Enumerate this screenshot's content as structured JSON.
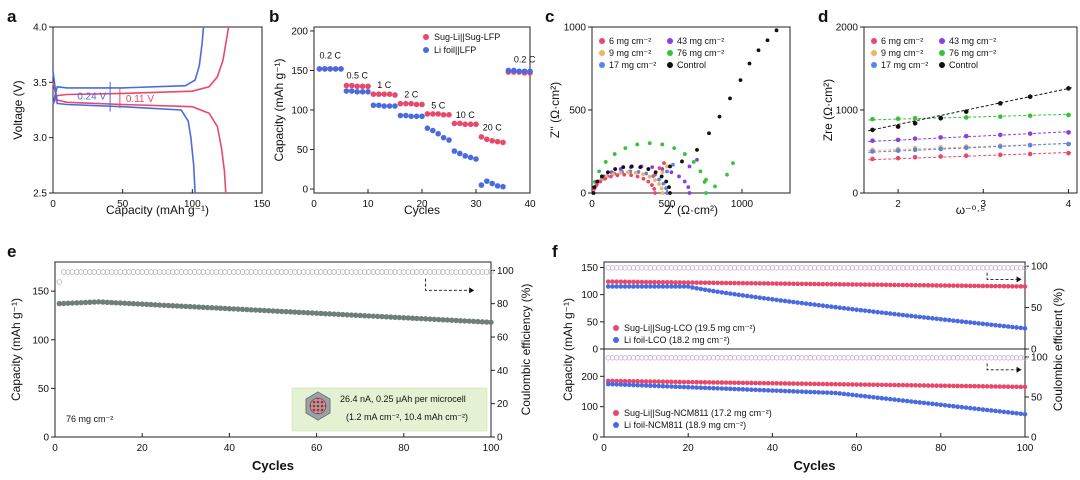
{
  "colors": {
    "red": "#e8496b",
    "blue": "#4a6be0",
    "axis": "#222222",
    "green_box": "#e6f4d6",
    "gray_dot": "#6d7f76"
  },
  "panels": [
    {
      "letter": "a",
      "xlabel": "Capacity (mAh g⁻¹)",
      "ylabel": "Voltage (V)",
      "xticks": [
        "0",
        "50",
        "100",
        "150"
      ],
      "yticks": [
        "2.5",
        "3.0",
        "3.5",
        "4.0"
      ],
      "annotations": [
        "0.24 V",
        "0.11 V"
      ]
    },
    {
      "letter": "b",
      "xlabel": "Cycles",
      "ylabel": "Capacity (mAh g⁻¹)",
      "xticks": [
        "0",
        "10",
        "20",
        "30",
        "40"
      ],
      "yticks": [
        "0",
        "50",
        "100",
        "150",
        "200"
      ],
      "legend": [
        "Sug-Li||Sug-LFP",
        "Li foil||LFP"
      ],
      "rates": [
        "0.2 C",
        "0.5 C",
        "1 C",
        "2 C",
        "5 C",
        "10 C",
        "20 C",
        "0.2 C"
      ]
    },
    {
      "letter": "c",
      "xlabel": "Z' (Ω·cm²)",
      "ylabel": "Z'' (Ω·cm²)",
      "xticks": [
        "0",
        "500",
        "1000"
      ],
      "yticks": [
        "0",
        "500",
        "1000"
      ],
      "legend": [
        "6 mg cm⁻²",
        "9 mg cm⁻²",
        "17 mg cm⁻²",
        "43 mg cm⁻²",
        "76 mg cm⁻²",
        "Control"
      ]
    },
    {
      "letter": "d",
      "xlabel": "ω⁻⁰·⁵",
      "ylabel": "Zre (Ω·cm²)",
      "xticks": [
        "2",
        "3",
        "4"
      ],
      "yticks": [
        "0",
        "1000",
        "2000"
      ],
      "legend": [
        "6 mg cm⁻²",
        "9 mg cm⁻²",
        "17 mg cm⁻²",
        "43 mg cm⁻²",
        "76 mg cm⁻²",
        "Control"
      ]
    },
    {
      "letter": "e",
      "xlabel": "Cycles",
      "ylabel": "Capacity (mAh g⁻¹)",
      "ylabel2": "Coulombic efficiency (%)",
      "xticks": [
        "0",
        "20",
        "40",
        "60",
        "80",
        "100"
      ],
      "yticks": [
        "0",
        "50",
        "100",
        "150"
      ],
      "y2ticks": [
        "0",
        "20",
        "40",
        "60",
        "80",
        "100"
      ],
      "loading": "76 mg cm⁻²",
      "box_line1": "26.4 nA, 0.25 μAh per microcell",
      "box_line2": "(1.2 mA cm⁻², 10.4 mAh cm⁻²)"
    },
    {
      "letter": "f",
      "xlabel": "Cycles",
      "ylabel": "Capacity (mAh g⁻¹)",
      "ylabel2": "Coulombic efficient (%)",
      "xticks": [
        "0",
        "20",
        "40",
        "60",
        "80",
        "100"
      ],
      "top_yticks": [
        "0",
        "50",
        "100",
        "150"
      ],
      "bottom_yticks": [
        "0",
        "100",
        "200"
      ],
      "top_y2ticks": [
        "0",
        "50",
        "100"
      ],
      "bottom_y2ticks": [
        "0",
        "50",
        "100"
      ],
      "top_legend": [
        "Sug-Li||Sug-LCO (19.5 mg cm⁻²)",
        "Li foil-LCO (18.2 mg cm⁻²)"
      ],
      "bottom_legend": [
        "Sug-Li||Sug-NCM811 (17.2 mg cm⁻²)",
        "Li foil-NCM811 (18.9 mg cm⁻²)"
      ]
    }
  ],
  "chart_data": [
    {
      "type": "line",
      "panel": "a",
      "xlabel": "Capacity (mAh g⁻¹)",
      "ylabel": "Voltage (V)",
      "xlim": [
        0,
        150
      ],
      "ylim": [
        2.5,
        4.0
      ],
      "series": [
        {
          "name": "Sug-Li||Sug-LFP",
          "charge": [
            [
              0,
              3.3
            ],
            [
              3,
              3.38
            ],
            [
              10,
              3.39
            ],
            [
              50,
              3.4
            ],
            [
              100,
              3.42
            ],
            [
              112,
              3.46
            ],
            [
              118,
              3.55
            ],
            [
              122,
              3.7
            ],
            [
              124,
              3.85
            ],
            [
              126,
              4.0
            ]
          ],
          "discharge": [
            [
              0,
              3.5
            ],
            [
              3,
              3.34
            ],
            [
              10,
              3.32
            ],
            [
              50,
              3.3
            ],
            [
              100,
              3.28
            ],
            [
              112,
              3.22
            ],
            [
              118,
              3.1
            ],
            [
              121,
              2.9
            ],
            [
              123,
              2.7
            ],
            [
              124,
              2.5
            ]
          ]
        },
        {
          "name": "Li foil||LFP",
          "charge": [
            [
              0,
              3.3
            ],
            [
              3,
              3.46
            ],
            [
              10,
              3.45
            ],
            [
              50,
              3.45
            ],
            [
              95,
              3.47
            ],
            [
              102,
              3.52
            ],
            [
              105,
              3.65
            ],
            [
              107,
              3.85
            ],
            [
              108,
              4.0
            ]
          ],
          "discharge": [
            [
              0,
              3.6
            ],
            [
              3,
              3.31
            ],
            [
              10,
              3.3
            ],
            [
              50,
              3.28
            ],
            [
              92,
              3.25
            ],
            [
              97,
              3.15
            ],
            [
              99,
              3.0
            ],
            [
              101,
              2.75
            ],
            [
              102,
              2.5
            ]
          ]
        }
      ]
    },
    {
      "type": "scatter",
      "panel": "b",
      "xlabel": "Cycles",
      "ylabel": "Capacity (mAh g⁻¹)",
      "xlim": [
        0,
        40
      ],
      "ylim": [
        -5,
        205
      ],
      "series": [
        {
          "name": "Sug-Li||Sug-LFP",
          "x": [
            1,
            2,
            3,
            4,
            5,
            6,
            7,
            8,
            9,
            10,
            11,
            12,
            13,
            14,
            15,
            16,
            17,
            18,
            19,
            20,
            21,
            22,
            23,
            24,
            25,
            26,
            27,
            28,
            29,
            30,
            31,
            32,
            33,
            34,
            35,
            36,
            37,
            38,
            39,
            40
          ],
          "y": [
            152,
            152,
            152,
            152,
            152,
            131,
            131,
            130,
            130,
            130,
            120,
            120,
            120,
            120,
            119,
            108,
            108,
            108,
            107,
            107,
            95,
            95,
            95,
            94,
            94,
            83,
            83,
            82,
            82,
            82,
            66,
            63,
            61,
            60,
            59,
            148,
            148,
            148,
            147,
            147
          ]
        },
        {
          "name": "Li foil||LFP",
          "x": [
            1,
            2,
            3,
            4,
            5,
            6,
            7,
            8,
            9,
            10,
            11,
            12,
            13,
            14,
            15,
            16,
            17,
            18,
            19,
            20,
            21,
            22,
            23,
            24,
            25,
            26,
            27,
            28,
            29,
            30,
            31,
            32,
            33,
            34,
            35,
            36,
            37,
            38,
            39,
            40
          ],
          "y": [
            152,
            152,
            152,
            152,
            152,
            124,
            124,
            123,
            123,
            123,
            106,
            106,
            105,
            105,
            105,
            93,
            93,
            92,
            92,
            92,
            77,
            74,
            70,
            65,
            62,
            48,
            45,
            42,
            40,
            38,
            5,
            10,
            7,
            4,
            3,
            150,
            150,
            149,
            149,
            149
          ]
        }
      ]
    },
    {
      "type": "scatter",
      "panel": "c",
      "xlabel": "Z' (Ω·cm²)",
      "ylabel": "Z'' (Ω·cm²)",
      "xlim": [
        0,
        1320
      ],
      "ylim": [
        0,
        1000
      ],
      "series": [
        {
          "name": "6 mg cm⁻²",
          "arc": [
            10,
            420,
            110
          ],
          "tail": [
            [
              420,
              110
            ],
            [
              450,
              150
            ],
            [
              480,
              180
            ]
          ]
        },
        {
          "name": "9 mg cm⁻²",
          "arc": [
            10,
            470,
            125
          ],
          "tail": [
            [
              470,
              125
            ],
            [
              500,
              160
            ]
          ]
        },
        {
          "name": "17 mg cm⁻²",
          "arc": [
            10,
            500,
            130
          ],
          "tail": [
            [
              500,
              130
            ],
            [
              540,
              170
            ]
          ]
        },
        {
          "name": "43 mg cm⁻²",
          "arc": [
            10,
            650,
            160
          ],
          "tail": [
            [
              650,
              160
            ],
            [
              700,
              200
            ]
          ]
        },
        {
          "name": "76 mg cm⁻²",
          "arc": [
            10,
            760,
            300
          ],
          "tail": [
            [
              760,
              80
            ],
            [
              820,
              40
            ],
            [
              900,
              110
            ],
            [
              940,
              180
            ]
          ]
        },
        {
          "name": "Control",
          "arc": [
            10,
            520,
            160
          ],
          "tail": [
            [
              520,
              160
            ],
            [
              600,
              190
            ],
            [
              700,
              260
            ],
            [
              780,
              360
            ],
            [
              850,
              460
            ],
            [
              920,
              570
            ],
            [
              990,
              680
            ],
            [
              1050,
              780
            ],
            [
              1110,
              860
            ],
            [
              1170,
              920
            ],
            [
              1230,
              980
            ]
          ]
        }
      ]
    },
    {
      "type": "scatter",
      "panel": "d",
      "xlabel": "ω⁻⁰·⁵",
      "ylabel": "Zre (Ω·cm²)",
      "xlim": [
        1.6,
        4.1
      ],
      "ylim": [
        0,
        2000
      ],
      "x": [
        1.7,
        2.0,
        2.2,
        2.5,
        2.8,
        3.2,
        3.55,
        4.0
      ],
      "series": [
        {
          "name": "6 mg cm⁻²",
          "y": [
            410,
            420,
            430,
            440,
            450,
            460,
            470,
            480
          ]
        },
        {
          "name": "9 mg cm⁻²",
          "y": [
            520,
            530,
            540,
            550,
            560,
            570,
            580,
            590
          ]
        },
        {
          "name": "17 mg cm⁻²",
          "y": [
            500,
            510,
            520,
            530,
            545,
            560,
            575,
            590
          ]
        },
        {
          "name": "43 mg cm⁻²",
          "y": [
            630,
            640,
            655,
            670,
            685,
            700,
            715,
            730
          ]
        },
        {
          "name": "76 mg cm⁻²",
          "y": [
            890,
            895,
            900,
            905,
            910,
            920,
            930,
            940
          ]
        },
        {
          "name": "Control",
          "y": [
            760,
            800,
            840,
            900,
            980,
            1080,
            1160,
            1260
          ]
        }
      ]
    },
    {
      "type": "scatter",
      "panel": "e",
      "xlabel": "Cycles",
      "ylabel": "Capacity (mAh g⁻¹)",
      "xlim": [
        0,
        100
      ],
      "ylim": [
        0,
        180
      ],
      "y2lim": [
        0,
        105
      ],
      "series": [
        {
          "name": "Capacity",
          "start": 137,
          "peak": 139,
          "end": 118
        },
        {
          "name": "Coulombic efficiency",
          "first": 93,
          "value": 99
        }
      ]
    },
    {
      "type": "scatter",
      "panel": "f-top",
      "xlabel": "Cycles",
      "ylabel": "Capacity (mAh g⁻¹)",
      "xlim": [
        0,
        100
      ],
      "ylim": [
        0,
        160
      ],
      "y2lim": [
        0,
        105
      ],
      "series": [
        {
          "name": "Sug-Li||Sug-LCO (19.5 mg cm⁻²)",
          "start": 124,
          "end": 115
        },
        {
          "name": "Li foil-LCO (18.2 mg cm⁻²)",
          "start": 115,
          "end": 38
        }
      ]
    },
    {
      "type": "scatter",
      "panel": "f-bottom",
      "xlabel": "Cycles",
      "ylabel": "Capacity (mAh g⁻¹)",
      "xlim": [
        0,
        100
      ],
      "ylim": [
        0,
        290
      ],
      "y2lim": [
        0,
        110
      ],
      "series": [
        {
          "name": "Sug-Li||Sug-NCM811 (17.2 mg cm⁻²)",
          "start": 185,
          "end": 165
        },
        {
          "name": "Li foil-NCM811 (18.9 mg cm⁻²)",
          "start": 175,
          "end": 75
        }
      ]
    }
  ]
}
